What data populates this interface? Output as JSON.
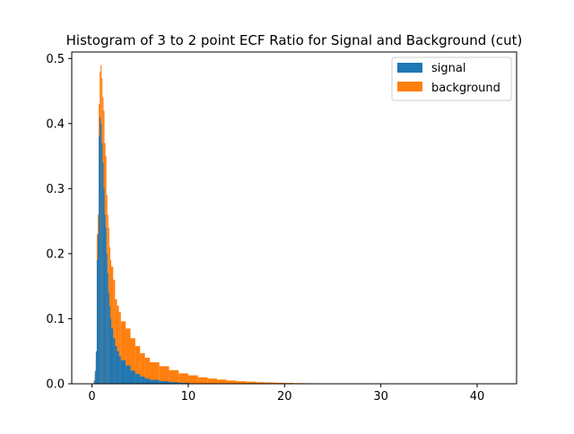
{
  "chart_data": {
    "type": "bar",
    "title": "Histogram of 3 to 2 point ECF Ratio for Signal and Background (cut)",
    "xlabel": "",
    "ylabel": "",
    "xlim": [
      -2.1,
      44.1
    ],
    "ylim": [
      0,
      0.51
    ],
    "xticks": [
      0,
      10,
      20,
      30,
      40
    ],
    "yticks": [
      0.0,
      0.1,
      0.2,
      0.3,
      0.4,
      0.5
    ],
    "xtick_labels": [
      "0",
      "10",
      "20",
      "30",
      "40"
    ],
    "ytick_labels": [
      "0.0",
      "0.1",
      "0.2",
      "0.3",
      "0.4",
      "0.5"
    ],
    "legend": {
      "position": "top-right"
    },
    "grid": false,
    "bin_width": 0.1,
    "series": [
      {
        "name": "background",
        "color": "#ff7f0e",
        "x": [
          0.2,
          0.3,
          0.4,
          0.5,
          0.6,
          0.7,
          0.8,
          0.9,
          1.0,
          1.1,
          1.2,
          1.3,
          1.4,
          1.5,
          1.6,
          1.7,
          1.8,
          1.9,
          2.0,
          2.2,
          2.4,
          2.6,
          2.8,
          3.0,
          3.5,
          4.0,
          4.5,
          5.0,
          5.5,
          6.0,
          7.0,
          8.0,
          9.0,
          10.0,
          11.0,
          12.0,
          13.0,
          14.0,
          15.0,
          16.0,
          17.0,
          18.0,
          19.0,
          20.0,
          21.0,
          22.0,
          23.0,
          24.0
        ],
        "values": [
          0.005,
          0.015,
          0.04,
          0.23,
          0.26,
          0.43,
          0.48,
          0.49,
          0.47,
          0.44,
          0.42,
          0.37,
          0.35,
          0.29,
          0.26,
          0.24,
          0.21,
          0.19,
          0.18,
          0.16,
          0.13,
          0.12,
          0.11,
          0.096,
          0.085,
          0.07,
          0.058,
          0.047,
          0.04,
          0.033,
          0.027,
          0.021,
          0.016,
          0.013,
          0.01,
          0.008,
          0.0065,
          0.005,
          0.004,
          0.0032,
          0.0025,
          0.002,
          0.0016,
          0.0013,
          0.001,
          0.0008,
          0.0006,
          0.0004
        ]
      },
      {
        "name": "signal",
        "color": "#1f77b4",
        "x": [
          0.2,
          0.3,
          0.4,
          0.5,
          0.6,
          0.7,
          0.8,
          0.9,
          1.0,
          1.1,
          1.2,
          1.3,
          1.4,
          1.5,
          1.6,
          1.7,
          1.8,
          1.9,
          2.0,
          2.2,
          2.4,
          2.6,
          2.8,
          3.0,
          3.5,
          4.0,
          4.5,
          5.0,
          5.5,
          6.0,
          7.0,
          8.0,
          9.0,
          10.0
        ],
        "values": [
          0.005,
          0.02,
          0.05,
          0.19,
          0.23,
          0.38,
          0.41,
          0.4,
          0.37,
          0.34,
          0.3,
          0.26,
          0.24,
          0.2,
          0.17,
          0.14,
          0.12,
          0.1,
          0.085,
          0.07,
          0.058,
          0.05,
          0.042,
          0.036,
          0.028,
          0.02,
          0.015,
          0.011,
          0.008,
          0.006,
          0.004,
          0.0025,
          0.0015,
          0.001
        ]
      }
    ]
  }
}
